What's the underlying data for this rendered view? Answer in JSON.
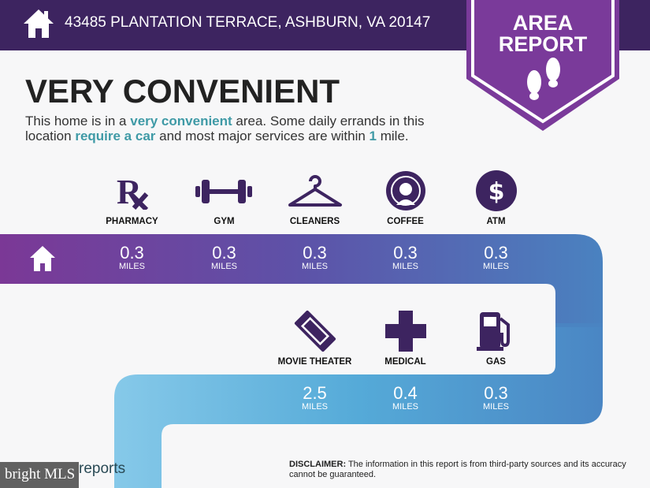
{
  "header": {
    "address": "43485 PLANTATION TERRACE, ASHBURN, VA 20147",
    "icon": "home-icon"
  },
  "badge": {
    "line1": "AREA",
    "line2": "REPORT",
    "icon": "footprints-icon"
  },
  "summary": {
    "title": "VERY CONVENIENT",
    "text_1": "This home is in a ",
    "hl_1": "very convenient",
    "text_2": " area. Some daily errands in this location ",
    "hl_2": "require a car",
    "text_3": " and most major services are within ",
    "hl_3": "1",
    "text_4": " mile."
  },
  "amenities_row1": [
    {
      "label": "PHARMACY",
      "distance": "0.3",
      "unit": "MILES",
      "icon": "rx-icon"
    },
    {
      "label": "GYM",
      "distance": "0.3",
      "unit": "MILES",
      "icon": "dumbbell-icon"
    },
    {
      "label": "CLEANERS",
      "distance": "0.3",
      "unit": "MILES",
      "icon": "hanger-icon"
    },
    {
      "label": "COFFEE",
      "distance": "0.3",
      "unit": "MILES",
      "icon": "coffee-logo-icon"
    },
    {
      "label": "ATM",
      "distance": "0.3",
      "unit": "MILES",
      "icon": "dollar-icon"
    }
  ],
  "amenities_row2": [
    {
      "label": "MOVIE THEATER",
      "distance": "2.5",
      "unit": "MILES",
      "icon": "ticket-icon"
    },
    {
      "label": "MEDICAL",
      "distance": "0.4",
      "unit": "MILES",
      "icon": "medical-cross-icon"
    },
    {
      "label": "GAS",
      "distance": "0.3",
      "unit": "MILES",
      "icon": "gas-pump-icon"
    }
  ],
  "footer": {
    "brand": "reports",
    "disclaimer_label": "DISCLAIMER:",
    "disclaimer": " The information in this report is from third-party sources and its accuracy cannot be guaranteed.",
    "watermark": "bright MLS"
  },
  "colors": {
    "header": "#3d2460",
    "badge": "#7a3a9a",
    "accent_text": "#3f9aa6",
    "icon": "#3d2460"
  }
}
